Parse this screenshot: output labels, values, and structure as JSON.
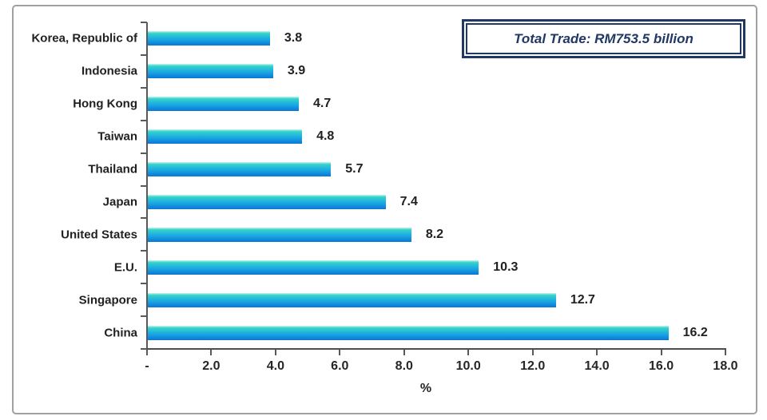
{
  "annotation": {
    "text": "Total Trade: RM753.5 billion"
  },
  "colors": {
    "bar_gradient_top": "#c9f7ee",
    "bar_gradient_upper": "#3bd4c9",
    "bar_gradient_mid": "#1aa7e2",
    "bar_gradient_bottom": "#0c78d2",
    "axis_line": "#595959",
    "label_text": "#212121",
    "annotation_border": "#1f3864",
    "annotation_text": "#1f3864",
    "frame_border": "#a0a0a0"
  },
  "chart_data": {
    "type": "bar",
    "orientation": "horizontal",
    "title": "",
    "categories": [
      "Korea, Republic of",
      "Indonesia",
      "Hong Kong",
      "Taiwan",
      "Thailand",
      "Japan",
      "United States",
      "E.U.",
      "Singapore",
      "China"
    ],
    "values": [
      3.8,
      3.9,
      4.7,
      4.8,
      5.7,
      7.4,
      8.2,
      10.3,
      12.7,
      16.2
    ],
    "value_labels": [
      "3.8",
      "3.9",
      "4.7",
      "4.8",
      "5.7",
      "7.4",
      "8.2",
      "10.3",
      "12.7",
      "16.2"
    ],
    "xlabel": "%",
    "ylabel": "",
    "xlim": [
      0,
      18
    ],
    "xticks": [
      0,
      2,
      4,
      6,
      8,
      10,
      12,
      14,
      16,
      18
    ],
    "xtick_labels": [
      "-",
      "2.0",
      "4.0",
      "6.0",
      "8.0",
      "10.0",
      "12.0",
      "14.0",
      "16.0",
      "18.0"
    ],
    "grid": false,
    "legend": null,
    "annotation": "Total Trade: RM753.5 billion"
  }
}
